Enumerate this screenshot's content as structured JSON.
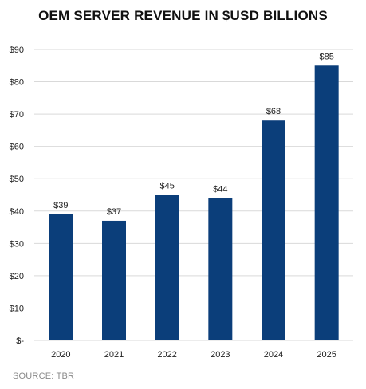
{
  "chart_data": {
    "type": "bar",
    "title": "OEM SERVER REVENUE IN $USD BILLIONS",
    "categories": [
      "2020",
      "2021",
      "2022",
      "2023",
      "2024",
      "2025"
    ],
    "values": [
      39,
      37,
      45,
      44,
      68,
      85
    ],
    "data_labels": [
      "$39",
      "$37",
      "$45",
      "$44",
      "$68",
      "$85"
    ],
    "y_ticks": [
      0,
      10,
      20,
      30,
      40,
      50,
      60,
      70,
      80,
      90
    ],
    "y_tick_labels": [
      "$-",
      "$10",
      "$20",
      "$30",
      "$40",
      "$50",
      "$60",
      "$70",
      "$80",
      "$90"
    ],
    "ylim": [
      0,
      90
    ],
    "grid": true,
    "legend": "none",
    "bar_color": "#0b3e7a",
    "grid_color": "#d9d9d9"
  },
  "source": "SOURCE: TBR"
}
